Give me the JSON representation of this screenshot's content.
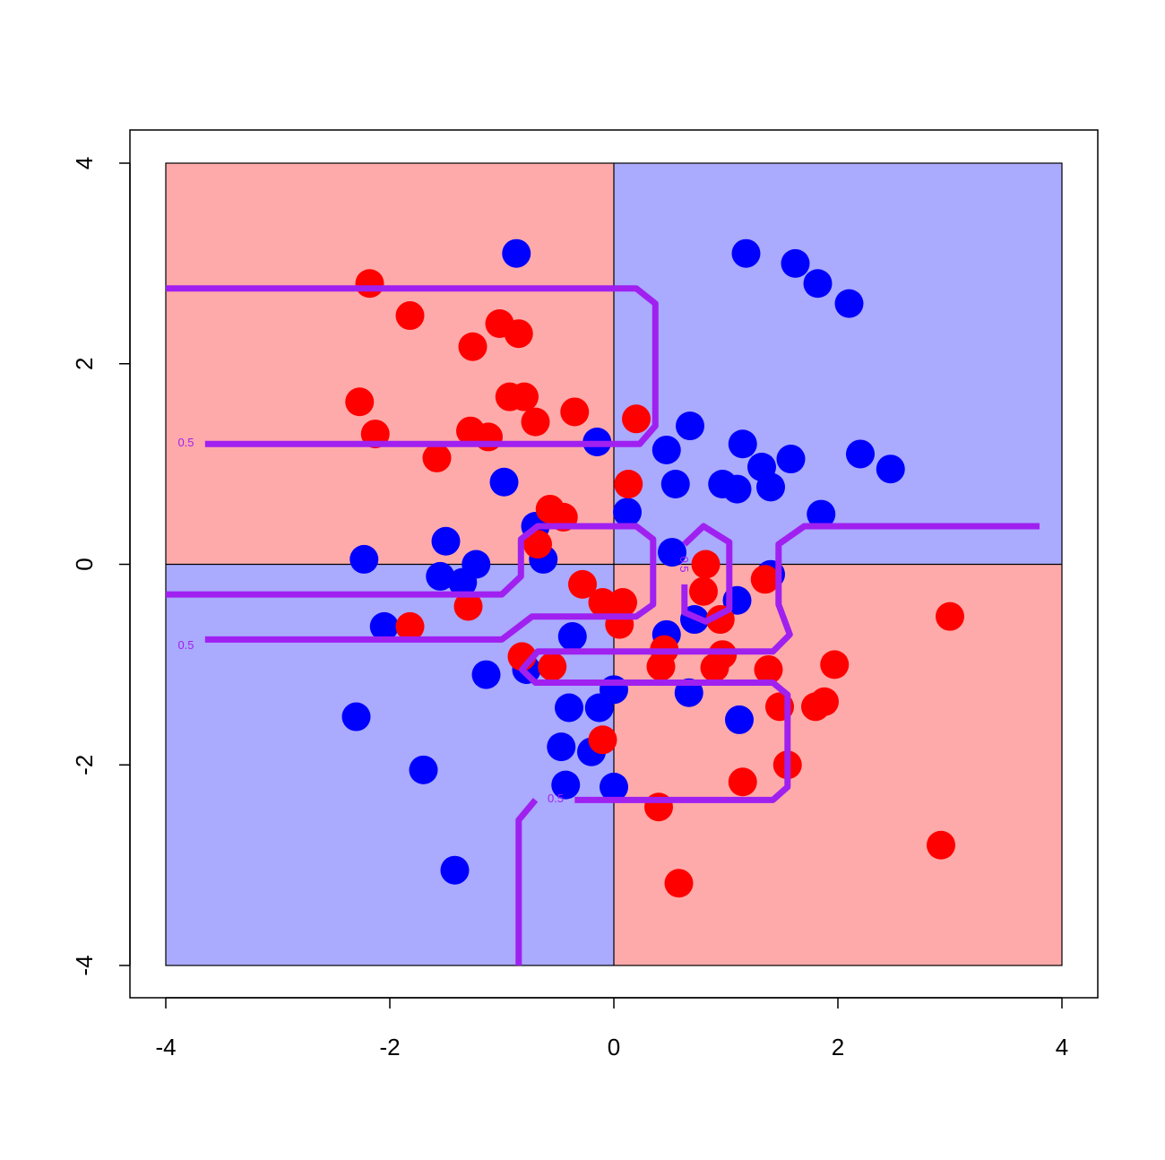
{
  "chart_data": {
    "type": "scatter",
    "title": "",
    "xlabel": "",
    "ylabel": "",
    "xlim": [
      -4,
      4
    ],
    "ylim": [
      -4,
      4
    ],
    "x_ticks": [
      -4,
      -2,
      0,
      2,
      4
    ],
    "y_ticks": [
      -4,
      -2,
      0,
      2,
      4
    ],
    "x_tick_labels": [
      "-4",
      "-2",
      "0",
      "2",
      "4"
    ],
    "y_tick_labels": [
      "-4",
      "-2",
      "0",
      "2",
      "4"
    ],
    "grid": false,
    "legend": "none",
    "colors": {
      "region_red": "#ffaaaa",
      "region_blue": "#aaaaff",
      "point_red": "#ff0000",
      "point_blue": "#0000ff",
      "contour": "#a020f0"
    },
    "regions": [
      {
        "class": "red",
        "x": [
          -4,
          0
        ],
        "y": [
          0,
          4
        ]
      },
      {
        "class": "blue",
        "x": [
          0,
          4
        ],
        "y": [
          0,
          4
        ]
      },
      {
        "class": "blue",
        "x": [
          -4,
          0
        ],
        "y": [
          -4,
          0
        ]
      },
      {
        "class": "red",
        "x": [
          0,
          4
        ],
        "y": [
          -4,
          0
        ]
      }
    ],
    "series": [
      {
        "class": "blue",
        "points": [
          [
            -0.87,
            3.1
          ],
          [
            1.18,
            3.1
          ],
          [
            1.62,
            3.0
          ],
          [
            1.82,
            2.8
          ],
          [
            2.1,
            2.6
          ],
          [
            0.68,
            1.38
          ],
          [
            0.47,
            1.14
          ],
          [
            1.15,
            1.2
          ],
          [
            -0.15,
            1.22
          ],
          [
            0.55,
            0.8
          ],
          [
            1.32,
            0.97
          ],
          [
            1.58,
            1.05
          ],
          [
            2.2,
            1.1
          ],
          [
            2.47,
            0.95
          ],
          [
            0.97,
            0.8
          ],
          [
            1.1,
            0.75
          ],
          [
            1.4,
            0.77
          ],
          [
            -0.98,
            0.82
          ],
          [
            0.12,
            0.52
          ],
          [
            1.85,
            0.5
          ],
          [
            -0.7,
            0.38
          ],
          [
            0.52,
            0.12
          ],
          [
            -0.63,
            0.05
          ],
          [
            -1.5,
            0.23
          ],
          [
            -2.23,
            0.05
          ],
          [
            -1.23,
            0.0
          ],
          [
            -1.55,
            -0.12
          ],
          [
            -1.35,
            -0.18
          ],
          [
            1.4,
            -0.1
          ],
          [
            0.72,
            -0.55
          ],
          [
            1.1,
            -0.36
          ],
          [
            0.47,
            -0.7
          ],
          [
            -2.05,
            -0.62
          ],
          [
            -0.37,
            -0.72
          ],
          [
            -1.14,
            -1.1
          ],
          [
            -0.78,
            -1.05
          ],
          [
            0.67,
            -1.28
          ],
          [
            0.0,
            -1.25
          ],
          [
            -0.4,
            -1.43
          ],
          [
            -0.13,
            -1.43
          ],
          [
            -2.3,
            -1.52
          ],
          [
            1.12,
            -1.55
          ],
          [
            -0.47,
            -1.82
          ],
          [
            -0.2,
            -1.87
          ],
          [
            -1.7,
            -2.05
          ],
          [
            -0.43,
            -2.2
          ],
          [
            0.0,
            -2.22
          ],
          [
            -1.42,
            -3.05
          ]
        ]
      },
      {
        "class": "red",
        "points": [
          [
            -2.18,
            2.8
          ],
          [
            -1.82,
            2.48
          ],
          [
            -1.02,
            2.4
          ],
          [
            -0.85,
            2.3
          ],
          [
            -1.26,
            2.17
          ],
          [
            -2.27,
            1.62
          ],
          [
            -0.93,
            1.67
          ],
          [
            -0.8,
            1.67
          ],
          [
            -0.35,
            1.52
          ],
          [
            -0.7,
            1.42
          ],
          [
            -2.13,
            1.3
          ],
          [
            -1.28,
            1.33
          ],
          [
            -1.12,
            1.27
          ],
          [
            0.2,
            1.45
          ],
          [
            -1.58,
            1.06
          ],
          [
            0.13,
            0.8
          ],
          [
            -0.57,
            0.55
          ],
          [
            -0.45,
            0.47
          ],
          [
            -0.68,
            0.2
          ],
          [
            0.82,
            0.0
          ],
          [
            1.35,
            -0.15
          ],
          [
            -0.28,
            -0.2
          ],
          [
            0.8,
            -0.27
          ],
          [
            -0.1,
            -0.38
          ],
          [
            0.08,
            -0.38
          ],
          [
            -1.3,
            -0.42
          ],
          [
            0.95,
            -0.55
          ],
          [
            0.05,
            -0.6
          ],
          [
            -1.82,
            -0.62
          ],
          [
            0.45,
            -0.85
          ],
          [
            0.97,
            -0.9
          ],
          [
            -0.82,
            -0.92
          ],
          [
            -0.55,
            -1.02
          ],
          [
            0.42,
            -1.02
          ],
          [
            0.9,
            -1.03
          ],
          [
            1.38,
            -1.05
          ],
          [
            1.97,
            -1.0
          ],
          [
            3.0,
            -0.52
          ],
          [
            1.88,
            -1.37
          ],
          [
            1.8,
            -1.42
          ],
          [
            1.48,
            -1.42
          ],
          [
            -0.1,
            -1.75
          ],
          [
            1.55,
            -2.0
          ],
          [
            1.15,
            -2.17
          ],
          [
            0.4,
            -2.42
          ],
          [
            2.92,
            -2.8
          ],
          [
            0.58,
            -3.18
          ]
        ]
      }
    ],
    "contour_level": "0.5",
    "contours": [
      [
        [
          -4.0,
          2.75
        ],
        [
          0.2,
          2.75
        ],
        [
          0.37,
          2.6
        ],
        [
          0.37,
          1.38
        ],
        [
          0.23,
          1.2
        ],
        [
          -3.65,
          1.2
        ]
      ],
      [
        [
          -4.0,
          -0.3
        ],
        [
          -1.0,
          -0.3
        ],
        [
          -0.83,
          -0.12
        ],
        [
          -0.83,
          0.25
        ],
        [
          -0.68,
          0.38
        ],
        [
          0.2,
          0.38
        ],
        [
          0.35,
          0.25
        ],
        [
          0.35,
          -0.4
        ],
        [
          0.2,
          -0.52
        ],
        [
          -0.73,
          -0.52
        ],
        [
          -1.0,
          -0.75
        ],
        [
          -3.65,
          -0.75
        ]
      ],
      [
        [
          0.63,
          -0.2
        ],
        [
          0.63,
          -0.48
        ],
        [
          0.82,
          -0.57
        ],
        [
          1.03,
          -0.45
        ],
        [
          1.03,
          0.22
        ],
        [
          0.8,
          0.38
        ],
        [
          0.63,
          0.2
        ]
      ],
      [
        [
          -0.85,
          -4.0
        ],
        [
          -0.85,
          -2.55
        ],
        [
          -0.7,
          -2.35
        ]
      ],
      [
        [
          -0.35,
          -2.35
        ],
        [
          1.42,
          -2.35
        ],
        [
          1.55,
          -2.22
        ],
        [
          1.55,
          -1.3
        ],
        [
          1.42,
          -1.18
        ],
        [
          -0.7,
          -1.18
        ],
        [
          -0.82,
          -1.05
        ],
        [
          -0.68,
          -0.87
        ],
        [
          1.42,
          -0.87
        ],
        [
          1.57,
          -0.7
        ],
        [
          1.47,
          -0.4
        ],
        [
          1.47,
          0.2
        ],
        [
          1.7,
          0.38
        ],
        [
          3.8,
          0.38
        ]
      ]
    ],
    "contour_labels": [
      {
        "text": "0.5",
        "x": -3.82,
        "y": 1.22,
        "rotate": 0
      },
      {
        "text": "0.5",
        "x": -3.82,
        "y": -0.8,
        "rotate": 0
      },
      {
        "text": "0.5",
        "x": 0.63,
        "y": 0.0,
        "rotate": 90
      },
      {
        "text": "0.5",
        "x": -0.52,
        "y": -2.33,
        "rotate": 0
      }
    ]
  }
}
